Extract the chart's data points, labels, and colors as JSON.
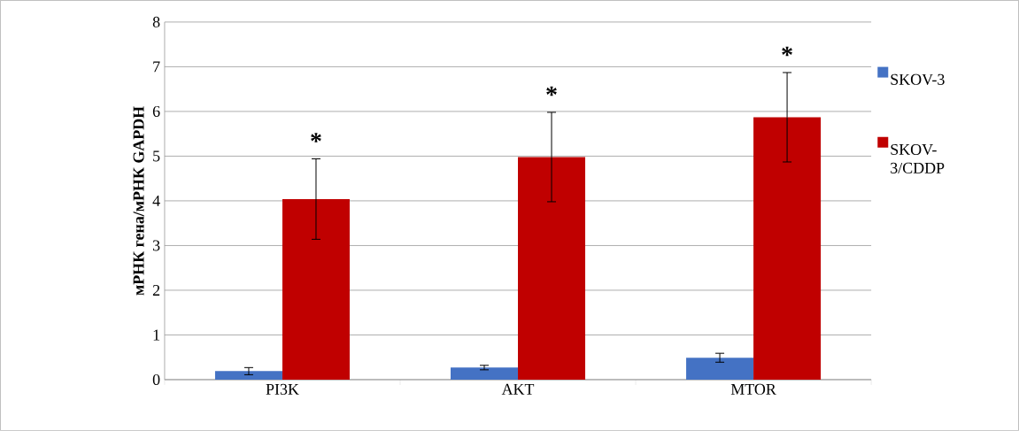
{
  "chart_data": {
    "type": "bar",
    "ylabel": "мРНК гена/мРНК GAPDH",
    "categories": [
      "PI3K",
      "AKT",
      "MTOR"
    ],
    "series": [
      {
        "name": "SKOV-3",
        "color": "#4472c4",
        "values": [
          0.19,
          0.27,
          0.49
        ],
        "errors": [
          0.08,
          0.05,
          0.1
        ]
      },
      {
        "name": "SKOV-3/CDDP",
        "color": "#c00000",
        "values": [
          4.04,
          4.98,
          5.87
        ],
        "errors": [
          0.9,
          1.0,
          1.0
        ]
      }
    ],
    "ylim": [
      0,
      8
    ],
    "yticks": [
      0,
      1,
      2,
      3,
      4,
      5,
      6,
      7,
      8
    ],
    "grid": "y",
    "legend": "right",
    "annotations": [
      "*",
      "*",
      "*"
    ]
  }
}
